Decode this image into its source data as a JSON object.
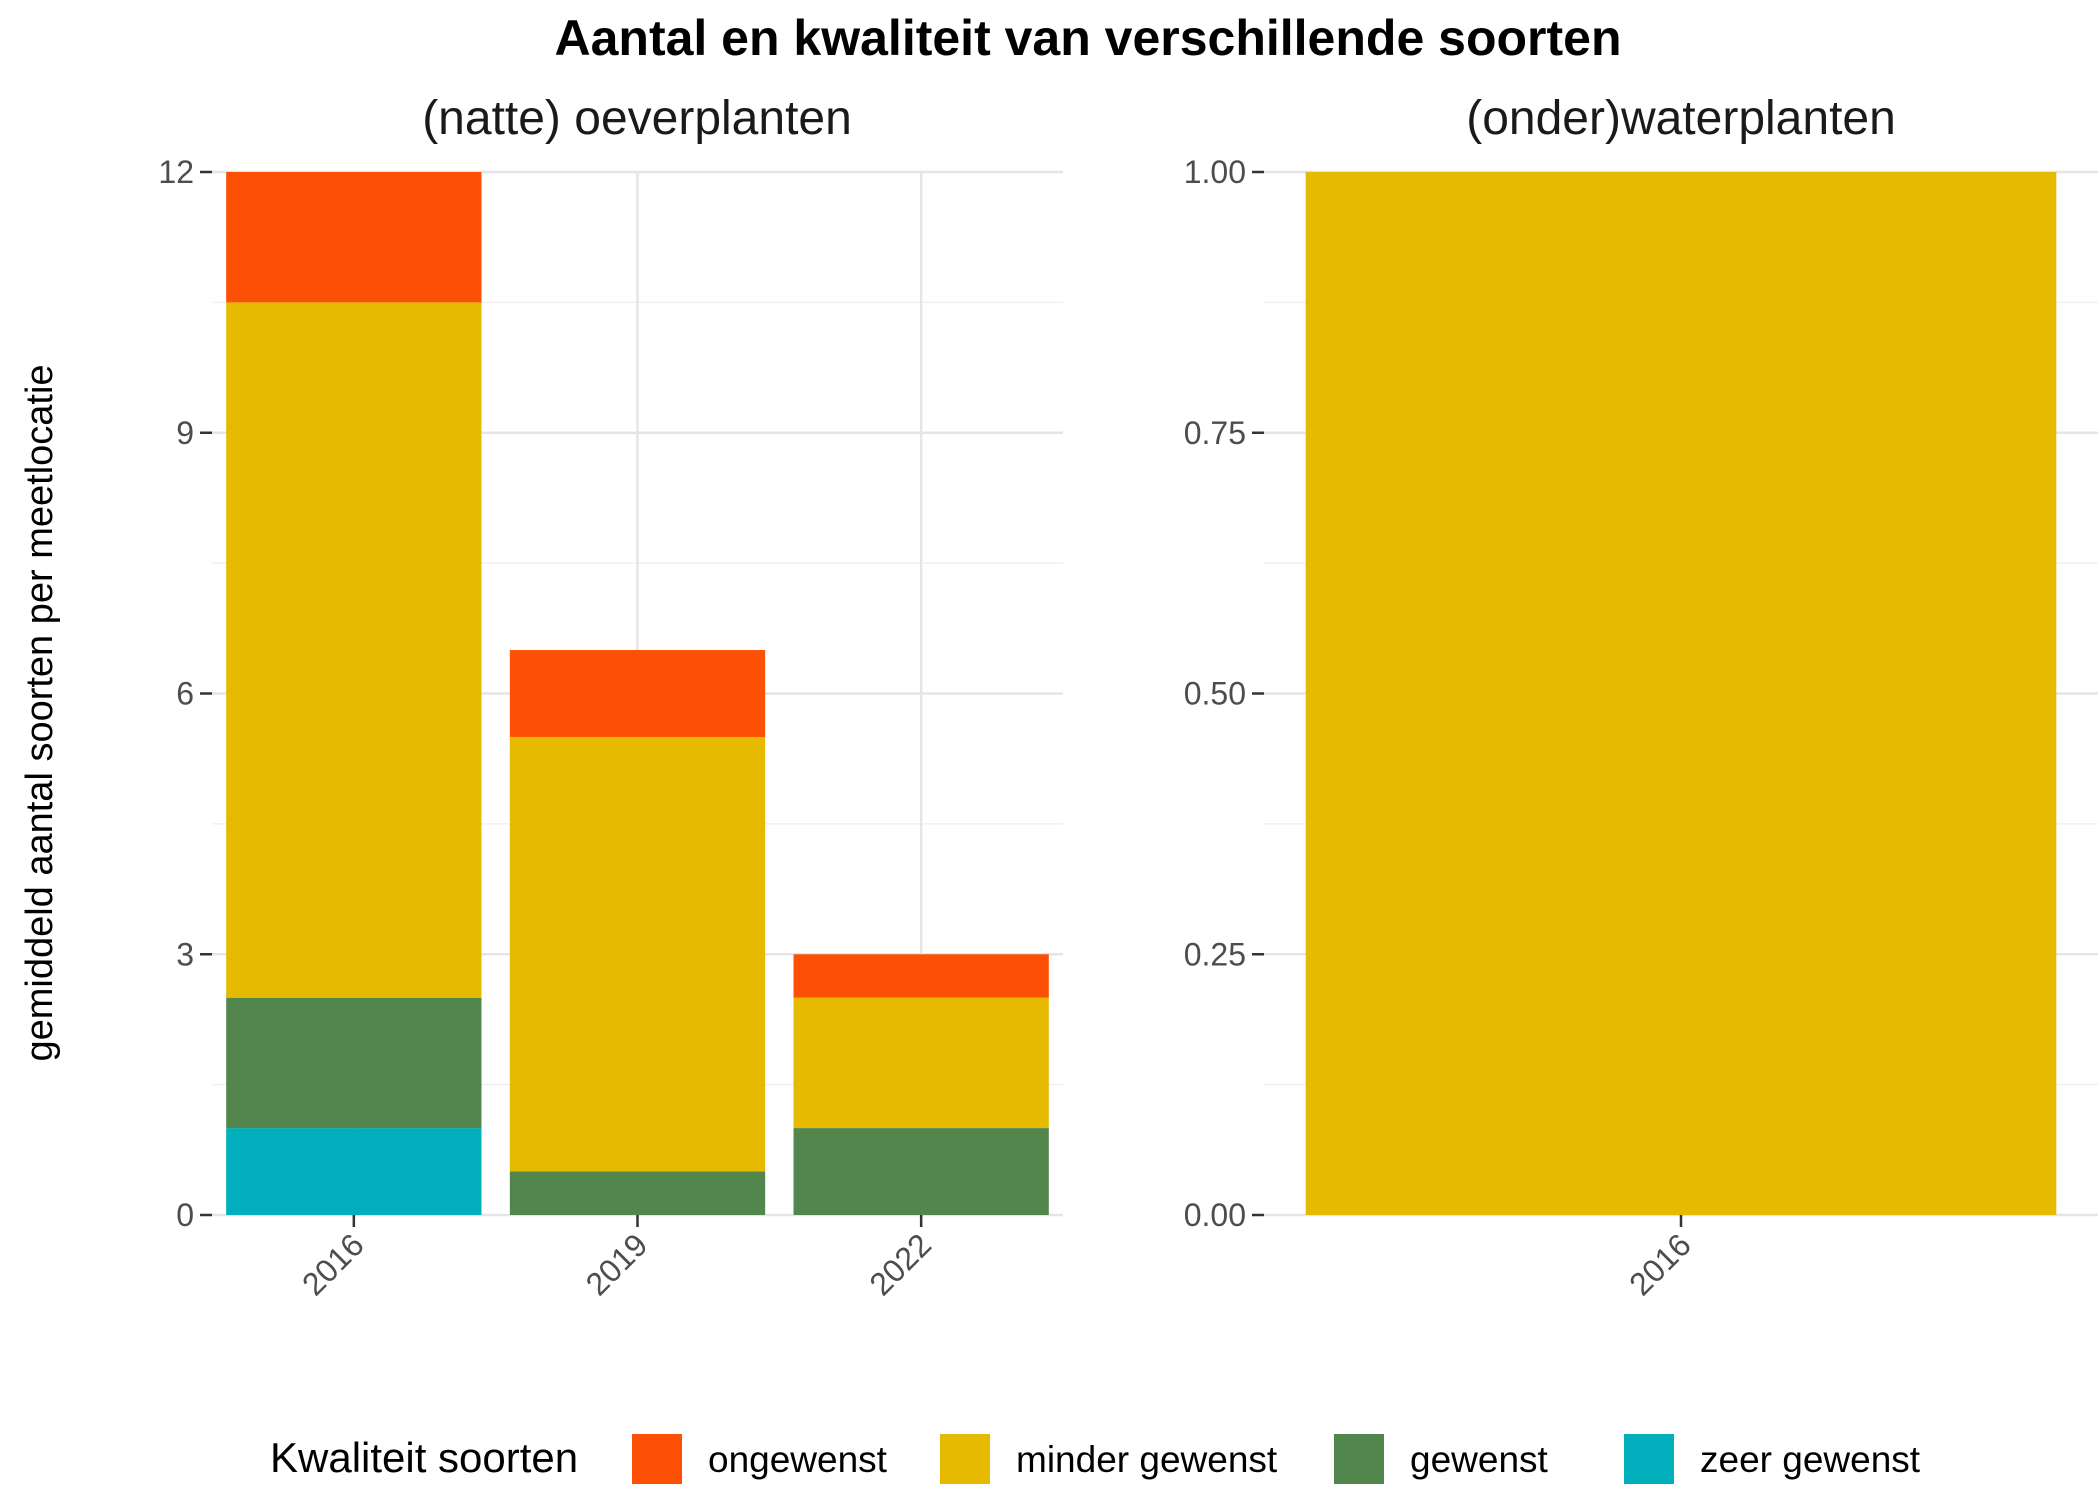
{
  "chart_data": {
    "type": "bar",
    "stacked": true,
    "title": "Aantal en kwaliteit van verschillende soorten",
    "ylabel": "gemiddeld aantal soorten per meetlocatie",
    "legend": {
      "title": "Kwaliteit soorten",
      "placement": "bottom",
      "entries": [
        {
          "key": "ongewenst",
          "label": "ongewenst",
          "color": "#FC5005"
        },
        {
          "key": "minder_gewenst",
          "label": "minder gewenst",
          "color": "#E6BA00"
        },
        {
          "key": "gewenst",
          "label": "gewenst",
          "color": "#52864D"
        },
        {
          "key": "zeer_gewenst",
          "label": "zeer gewenst",
          "color": "#00AFBB"
        }
      ]
    },
    "grid": true,
    "facets": [
      {
        "title": "(natte) oeverplanten",
        "categories": [
          "2016",
          "2019",
          "2022"
        ],
        "ylim": [
          0,
          12
        ],
        "yticks": [
          0,
          3,
          6,
          9,
          12
        ],
        "ytick_labels": [
          "0",
          "3",
          "6",
          "9",
          "12"
        ],
        "series": [
          {
            "key": "zeer_gewenst",
            "values": [
              1.0,
              0,
              0
            ]
          },
          {
            "key": "gewenst",
            "values": [
              1.5,
              0.5,
              1.0
            ]
          },
          {
            "key": "minder_gewenst",
            "values": [
              8.0,
              5.0,
              1.5
            ]
          },
          {
            "key": "ongewenst",
            "values": [
              1.5,
              1.0,
              0.5
            ]
          }
        ]
      },
      {
        "title": "(onder)waterplanten",
        "categories": [
          "2016"
        ],
        "ylim": [
          0,
          1
        ],
        "yticks": [
          0,
          0.25,
          0.5,
          0.75,
          1.0
        ],
        "ytick_labels": [
          "0.00",
          "0.25",
          "0.50",
          "0.75",
          "1.00"
        ],
        "series": [
          {
            "key": "zeer_gewenst",
            "values": [
              0
            ]
          },
          {
            "key": "gewenst",
            "values": [
              0
            ]
          },
          {
            "key": "minder_gewenst",
            "values": [
              1.0
            ]
          },
          {
            "key": "ongewenst",
            "values": [
              0
            ]
          }
        ]
      }
    ]
  }
}
